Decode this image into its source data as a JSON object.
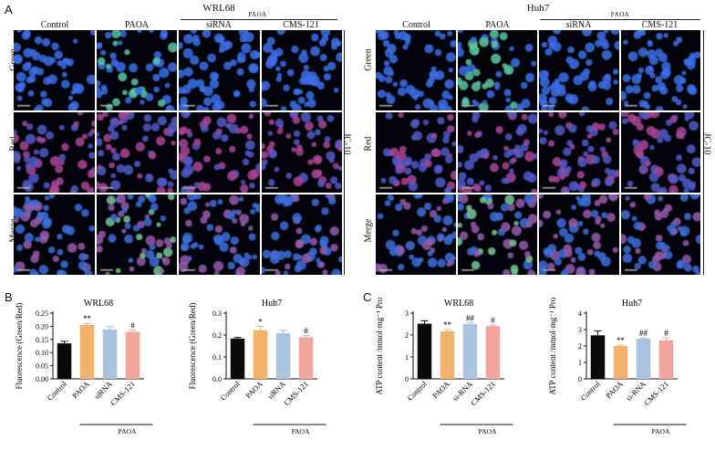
{
  "panels": {
    "A": {
      "letter": "A",
      "left": {
        "title": "WRL68",
        "group_label": "PAOA",
        "columns": [
          "Control",
          "PAOA",
          "siRNA",
          "CMS-121"
        ],
        "rows": [
          "Green",
          "Red",
          "Merge"
        ],
        "side_label": "JC-10"
      },
      "right": {
        "title": "Huh7",
        "group_label": "PAOA",
        "columns": [
          "Control",
          "PAOA",
          "siRNA",
          "CMS-121"
        ],
        "rows": [
          "Green",
          "Red",
          "Merge"
        ],
        "side_label": "JC-10"
      }
    },
    "B": {
      "letter": "B"
    },
    "C": {
      "letter": "C"
    }
  },
  "colors": {
    "black": "#0a0a0a",
    "orange": "#f2b26c",
    "blue": "#a9c2e0",
    "pink": "#f0a49a"
  },
  "chart_data": [
    {
      "type": "bar",
      "title": "WRL68",
      "ylabel": "Fluorescence (Green/Red)",
      "categories": [
        "Control",
        "PAOA",
        "siRNA",
        "CMS-121"
      ],
      "values": [
        0.135,
        0.205,
        0.188,
        0.179
      ],
      "errors": [
        0.008,
        0.006,
        0.011,
        0.007
      ],
      "significance": [
        "",
        "**",
        "",
        "#"
      ],
      "ylim": [
        0,
        0.25
      ],
      "yticks": [
        "0.00",
        "0.05",
        "0.10",
        "0.15",
        "0.20",
        "0.25"
      ],
      "bracket_label": "PAOA",
      "bracket_span": [
        1,
        3
      ]
    },
    {
      "type": "bar",
      "title": "Huh7",
      "ylabel": "Fluorescence (Green/Red)",
      "categories": [
        "Control",
        "PAOA",
        "siRNA",
        "CMS-121"
      ],
      "values": [
        0.184,
        0.222,
        0.208,
        0.19
      ],
      "errors": [
        0.005,
        0.018,
        0.013,
        0.007
      ],
      "significance": [
        "",
        "*",
        "",
        "#"
      ],
      "ylim": [
        0,
        0.3
      ],
      "yticks": [
        "0.0",
        "0.1",
        "0.2",
        "0.3"
      ],
      "bracket_label": "PAOA",
      "bracket_span": [
        1,
        3
      ]
    },
    {
      "type": "bar",
      "title": "WRL68",
      "ylabel": "ATP content /mmol·mg⁻¹ Pro",
      "categories": [
        "Control",
        "PAOA",
        "si-RNA",
        "CMS-121"
      ],
      "values": [
        2.52,
        2.17,
        2.5,
        2.4
      ],
      "errors": [
        0.13,
        0.08,
        0.06,
        0.05
      ],
      "significance": [
        "",
        "**",
        "##",
        "#"
      ],
      "ylim": [
        0,
        3
      ],
      "yticks": [
        "0",
        "1",
        "2",
        "3"
      ],
      "bracket_label": "PAOA",
      "bracket_span": [
        1,
        3
      ]
    },
    {
      "type": "bar",
      "title": "Huh7",
      "ylabel": "ATP content /mmol·mg⁻¹ Pro",
      "categories": [
        "Control",
        "PAOA",
        "si-RNA",
        "CMS-121"
      ],
      "values": [
        2.65,
        2.0,
        2.45,
        2.35
      ],
      "errors": [
        0.27,
        0.06,
        0.05,
        0.15
      ],
      "significance": [
        "",
        "**",
        "##",
        "#"
      ],
      "ylim": [
        0,
        4
      ],
      "yticks": [
        "0",
        "1",
        "2",
        "3",
        "4"
      ],
      "bracket_label": "PAOA",
      "bracket_span": [
        1,
        3
      ]
    }
  ]
}
